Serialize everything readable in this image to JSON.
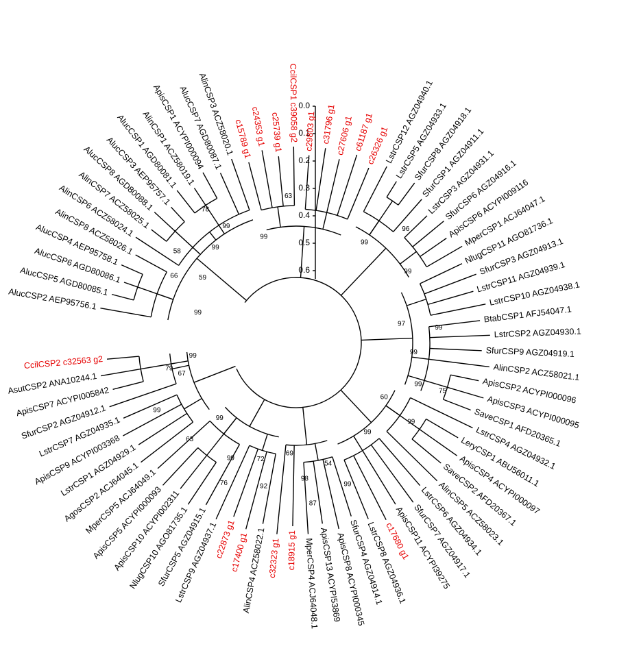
{
  "scale_bar": {
    "ticks": [
      "0.0",
      "0.1",
      "0.2",
      "0.3",
      "0.4",
      "0.5",
      "0.6"
    ]
  },
  "colors": {
    "default_label": "#000000",
    "highlight_label": "#e60000"
  },
  "leaves": [
    {
      "label": "AlucCSP2 AEP95756.1",
      "red": false
    },
    {
      "label": "AlucCSP5 AGD80085.1",
      "red": false
    },
    {
      "label": "AlucCSP6 AGD80086.1",
      "red": false
    },
    {
      "label": "AlucCSP4 AEP95758.1",
      "red": false
    },
    {
      "label": "AlinCSP8 ACZ58026.1",
      "red": false
    },
    {
      "label": "AlinCSP6 ACZ58024.1",
      "red": false
    },
    {
      "label": "AlinCSP7 ACZ58025.1",
      "red": false
    },
    {
      "label": "AlucCSP8 AGD80088.1",
      "red": false
    },
    {
      "label": "AlucCSP3 AEP95757.1",
      "red": false
    },
    {
      "label": "AlucCSP1 AGD80081.1",
      "red": false
    },
    {
      "label": "AlinCSP1 ACZ58019.1",
      "red": false
    },
    {
      "label": "ApisCSP1 ACYPI000094",
      "red": false
    },
    {
      "label": "AlucCSP7 AGD80087.1",
      "red": false
    },
    {
      "label": "AlinCSP3 ACZ58020.1",
      "red": false
    },
    {
      "label": "c15789 g1",
      "red": true
    },
    {
      "label": "c24353 g1",
      "red": true
    },
    {
      "label": "c25739 g1",
      "red": true
    },
    {
      "label": "CcilCSP1 c39058 g2",
      "red": true
    },
    {
      "label": "c29803 g1",
      "red": true
    },
    {
      "label": "c31796 g1",
      "red": true
    },
    {
      "label": "c27606 g1",
      "red": true
    },
    {
      "label": "c61187 g1",
      "red": true
    },
    {
      "label": "c26326 g1",
      "red": true
    },
    {
      "label": "LstrCSP12 AGZ04940.1",
      "red": false
    },
    {
      "label": "LstrCSP5 AGZ04933.1",
      "red": false
    },
    {
      "label": "SfurCSP8 AGZ04918.1",
      "red": false
    },
    {
      "label": "SfurCSP1 AGZ04911.1",
      "red": false
    },
    {
      "label": "LstrCSP3 AGZ04931.1",
      "red": false
    },
    {
      "label": "SfurCSP6 AGZ04916.1",
      "red": false
    },
    {
      "label": "ApisCSP6 ACYPI009116",
      "red": false
    },
    {
      "label": "MperCSP1 ACJ64047.1",
      "red": false
    },
    {
      "label": "NlugCSP11 AGO81736.1",
      "red": false
    },
    {
      "label": "SfurCSP3 AGZ04913.1",
      "red": false
    },
    {
      "label": "LstrCSP11 AGZ04939.1",
      "red": false
    },
    {
      "label": "LstrCSP10 AGZ04938.1",
      "red": false
    },
    {
      "label": "BtabCSP1 AFJ54047.1",
      "red": false
    },
    {
      "label": "LstrCSP2 AGZ04930.1",
      "red": false
    },
    {
      "label": "SfurCSP9 AGZ04919.1",
      "red": false
    },
    {
      "label": "AlinCSP2 ACZ58021.1",
      "red": false
    },
    {
      "label": "ApisCSP2 ACYPI000096",
      "red": false
    },
    {
      "label": "ApisCSP3 ACYPI000095",
      "red": false
    },
    {
      "label": "SaveCSP1 AFD20365.1",
      "red": false
    },
    {
      "label": "LstrCSP4 AGZ04932.1",
      "red": false
    },
    {
      "label": "LeryCSP1 ABU56011.1",
      "red": false
    },
    {
      "label": "ApisCSP4 ACYPI000097",
      "red": false
    },
    {
      "label": "SaveCSP2 AFD20367.1",
      "red": false
    },
    {
      "label": "AlinCSP5 ACZ58023.1",
      "red": false
    },
    {
      "label": "LstrCSP6 AGZ04934.1",
      "red": false
    },
    {
      "label": "SfurCSP7 AGZ04917.1",
      "red": false
    },
    {
      "label": "ApisCSP11 ACYPI39275",
      "red": false
    },
    {
      "label": "c17680 g1",
      "red": true
    },
    {
      "label": "LstrCSP8 AGZ04936.1",
      "red": false
    },
    {
      "label": "SfurCSP4 AGZ04914.1",
      "red": false
    },
    {
      "label": "ApisCSP8 ACYPI000345",
      "red": false
    },
    {
      "label": "ApisCSP13 ACYPI53869",
      "red": false
    },
    {
      "label": "MperCSP4 ACJ64048.1",
      "red": false
    },
    {
      "label": "c18915 g1",
      "red": true
    },
    {
      "label": "c32323 g1",
      "red": true
    },
    {
      "label": "AlinCSP4 ACZ58022.1",
      "red": false
    },
    {
      "label": "c17400 g1",
      "red": true
    },
    {
      "label": "c22873 g1",
      "red": true
    },
    {
      "label": "LstrCSP9 AGZ04937.1",
      "red": false
    },
    {
      "label": "SfurCSP5 AGZ04915.1",
      "red": false
    },
    {
      "label": "NlugCSP10 AGO81735.1",
      "red": false
    },
    {
      "label": "ApisCSP10 ACYPI002311",
      "red": false
    },
    {
      "label": "ApisCSP5 ACYPI000093",
      "red": false
    },
    {
      "label": "MperCSP5 ACJ64049.1",
      "red": false
    },
    {
      "label": "AgosCSP2 ACJ64045.1",
      "red": false
    },
    {
      "label": "LstrCSP1 AGZ04929.1",
      "red": false
    },
    {
      "label": "ApisCSP9 ACYPI003368",
      "red": false
    },
    {
      "label": "LstrCSP7 AGZ04935.1",
      "red": false
    },
    {
      "label": "SfurCSP2 AGZ04912.1",
      "red": false
    },
    {
      "label": "ApisCSP7 ACYPI005842",
      "red": false
    },
    {
      "label": "AsutCSP2 ANA10244.1",
      "red": false
    },
    {
      "label": "CcilCSP2 c32563 g2",
      "red": true
    }
  ],
  "bootstrap": [
    {
      "text": "99",
      "leaf": 1.5
    },
    {
      "text": "66",
      "leaf": 4
    },
    {
      "text": "59",
      "leaf": 5.3
    },
    {
      "text": "58",
      "leaf": 5.9
    },
    {
      "text": "99",
      "leaf": 8.5
    },
    {
      "text": "78",
      "leaf": 9.8
    },
    {
      "text": "99",
      "leaf": 10.5
    },
    {
      "text": "99",
      "leaf": 13.5
    },
    {
      "text": "63",
      "leaf": 16.5
    },
    {
      "text": "99",
      "leaf": 24.5
    },
    {
      "text": "96",
      "leaf": 26.6
    },
    {
      "text": "99",
      "leaf": 29.5
    },
    {
      "text": "97",
      "leaf": 34.3
    },
    {
      "text": "99",
      "leaf": 35.2
    },
    {
      "text": "99",
      "leaf": 37.5
    },
    {
      "text": "75",
      "leaf": 40.4
    },
    {
      "text": "99",
      "leaf": 40.5
    },
    {
      "text": "60",
      "leaf": 43.3
    },
    {
      "text": "99",
      "leaf": 43.9
    },
    {
      "text": "99",
      "leaf": 47.5
    },
    {
      "text": "99",
      "leaf": 51.5
    },
    {
      "text": "54",
      "leaf": 52.6
    },
    {
      "text": "87",
      "leaf": 54.5
    },
    {
      "text": "98",
      "leaf": 55.0
    },
    {
      "text": "69",
      "leaf": 56.5
    },
    {
      "text": "92",
      "leaf": 58.5
    },
    {
      "text": "72",
      "leaf": 59.4
    },
    {
      "text": "76",
      "leaf": 61.6
    },
    {
      "text": "99",
      "leaf": 62.1
    },
    {
      "text": "99",
      "leaf": 65.5
    },
    {
      "text": "63",
      "leaf": 66.0
    },
    {
      "text": "67",
      "leaf": 71.8
    },
    {
      "text": "99",
      "leaf": 69.5
    },
    {
      "text": "79",
      "leaf": 72.6
    },
    {
      "text": "99",
      "leaf": 73.5
    }
  ]
}
